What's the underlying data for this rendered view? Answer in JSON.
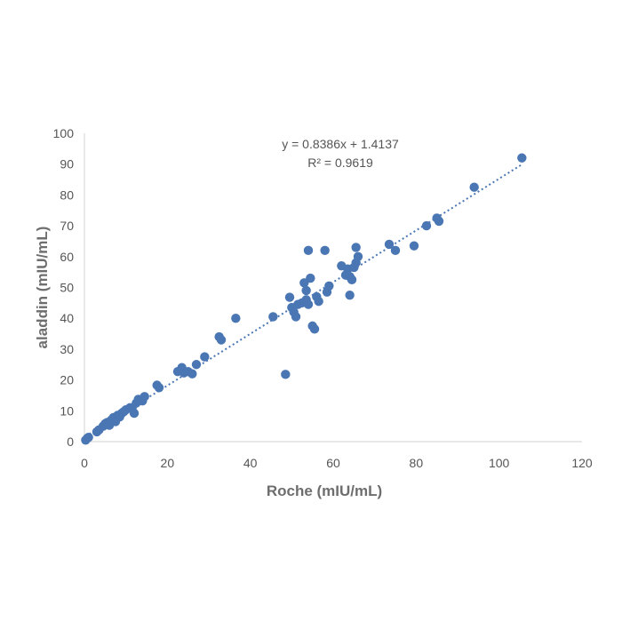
{
  "chart_data": {
    "type": "scatter",
    "xlabel": "Roche (mIU/mL)",
    "ylabel": "aladdin (mIU/mL)",
    "xlim": [
      0,
      120
    ],
    "ylim": [
      0,
      100
    ],
    "x_ticks": [
      0,
      20,
      40,
      60,
      80,
      100,
      120
    ],
    "y_ticks": [
      0,
      10,
      20,
      30,
      40,
      50,
      60,
      70,
      80,
      90,
      100
    ],
    "grid": false,
    "legend": "none",
    "marker_color": "#4a77b4",
    "trendline": {
      "type": "linear",
      "slope": 0.8386,
      "intercept": 1.4137,
      "style": "dotted",
      "color": "#4a77b4",
      "equation": "y = 0.8386x + 1.4137",
      "r_squared_label": "R² = 0.9619"
    },
    "series": [
      {
        "points": [
          [
            0.3,
            0.5
          ],
          [
            0.7,
            1.1
          ],
          [
            1.0,
            1.4
          ],
          [
            3.0,
            3.2
          ],
          [
            3.5,
            3.8
          ],
          [
            4.5,
            5.0
          ],
          [
            5.0,
            5.8
          ],
          [
            5.5,
            6.2
          ],
          [
            6.0,
            5.3
          ],
          [
            6.5,
            7.0
          ],
          [
            7.0,
            7.8
          ],
          [
            7.5,
            6.5
          ],
          [
            8.0,
            8.5
          ],
          [
            8.5,
            8.0
          ],
          [
            9.0,
            9.2
          ],
          [
            9.5,
            9.7
          ],
          [
            10.0,
            10.3
          ],
          [
            11.0,
            11.0
          ],
          [
            11.5,
            10.8
          ],
          [
            12.0,
            9.2
          ],
          [
            12.5,
            12.5
          ],
          [
            13.0,
            13.7
          ],
          [
            14.0,
            13.2
          ],
          [
            14.5,
            14.6
          ],
          [
            17.5,
            18.3
          ],
          [
            18.0,
            17.5
          ],
          [
            22.5,
            22.7
          ],
          [
            23.5,
            24.0
          ],
          [
            24.0,
            22.3
          ],
          [
            25.0,
            22.7
          ],
          [
            26.0,
            22.0
          ],
          [
            27.0,
            25.0
          ],
          [
            29.0,
            27.5
          ],
          [
            32.5,
            34.0
          ],
          [
            33.0,
            33.0
          ],
          [
            36.5,
            40.0
          ],
          [
            45.5,
            40.5
          ],
          [
            48.5,
            21.8
          ],
          [
            49.5,
            46.8
          ],
          [
            50.0,
            43.5
          ],
          [
            50.5,
            42.0
          ],
          [
            51.0,
            40.5
          ],
          [
            51.5,
            44.5
          ],
          [
            52.5,
            45.0
          ],
          [
            53.0,
            51.5
          ],
          [
            53.5,
            49.0
          ],
          [
            53.5,
            46.0
          ],
          [
            54.0,
            44.5
          ],
          [
            54.0,
            62.0
          ],
          [
            54.5,
            53.0
          ],
          [
            55.0,
            37.5
          ],
          [
            55.5,
            36.5
          ],
          [
            56.0,
            47.0
          ],
          [
            56.5,
            45.5
          ],
          [
            58.0,
            62.0
          ],
          [
            58.5,
            48.5
          ],
          [
            59.0,
            50.5
          ],
          [
            62.0,
            57.0
          ],
          [
            63.0,
            54.0
          ],
          [
            63.5,
            56.0
          ],
          [
            64.0,
            53.5
          ],
          [
            64.0,
            47.5
          ],
          [
            64.5,
            52.5
          ],
          [
            65.0,
            56.5
          ],
          [
            65.5,
            58.0
          ],
          [
            65.5,
            63.0
          ],
          [
            66.0,
            60.0
          ],
          [
            73.5,
            64.0
          ],
          [
            75.0,
            62.0
          ],
          [
            79.5,
            63.5
          ],
          [
            82.5,
            70.0
          ],
          [
            85.0,
            72.5
          ],
          [
            85.5,
            71.5
          ],
          [
            94.0,
            82.5
          ],
          [
            105.5,
            92.0
          ]
        ]
      }
    ]
  }
}
